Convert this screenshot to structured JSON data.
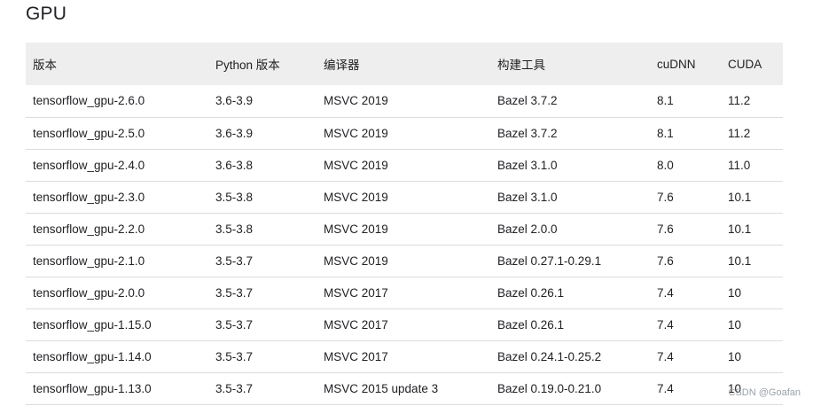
{
  "heading": "GPU",
  "table": {
    "headers": [
      "版本",
      "Python 版本",
      "编译器",
      "构建工具",
      "cuDNN",
      "CUDA"
    ],
    "rows": [
      [
        "tensorflow_gpu-2.6.0",
        "3.6-3.9",
        "MSVC 2019",
        "Bazel 3.7.2",
        "8.1",
        "11.2"
      ],
      [
        "tensorflow_gpu-2.5.0",
        "3.6-3.9",
        "MSVC 2019",
        "Bazel 3.7.2",
        "8.1",
        "11.2"
      ],
      [
        "tensorflow_gpu-2.4.0",
        "3.6-3.8",
        "MSVC 2019",
        "Bazel 3.1.0",
        "8.0",
        "11.0"
      ],
      [
        "tensorflow_gpu-2.3.0",
        "3.5-3.8",
        "MSVC 2019",
        "Bazel 3.1.0",
        "7.6",
        "10.1"
      ],
      [
        "tensorflow_gpu-2.2.0",
        "3.5-3.8",
        "MSVC 2019",
        "Bazel 2.0.0",
        "7.6",
        "10.1"
      ],
      [
        "tensorflow_gpu-2.1.0",
        "3.5-3.7",
        "MSVC 2019",
        "Bazel 0.27.1-0.29.1",
        "7.6",
        "10.1"
      ],
      [
        "tensorflow_gpu-2.0.0",
        "3.5-3.7",
        "MSVC 2017",
        "Bazel 0.26.1",
        "7.4",
        "10"
      ],
      [
        "tensorflow_gpu-1.15.0",
        "3.5-3.7",
        "MSVC 2017",
        "Bazel 0.26.1",
        "7.4",
        "10"
      ],
      [
        "tensorflow_gpu-1.14.0",
        "3.5-3.7",
        "MSVC 2017",
        "Bazel 0.24.1-0.25.2",
        "7.4",
        "10"
      ],
      [
        "tensorflow_gpu-1.13.0",
        "3.5-3.7",
        "MSVC 2015 update 3",
        "Bazel 0.19.0-0.21.0",
        "7.4",
        "10"
      ]
    ]
  },
  "watermark": "CSDN @Goafan",
  "colors": {
    "header_bg": "#eeeeee",
    "row_border": "#dadce0",
    "text": "#202124",
    "watermark": "#9aa0a6"
  }
}
